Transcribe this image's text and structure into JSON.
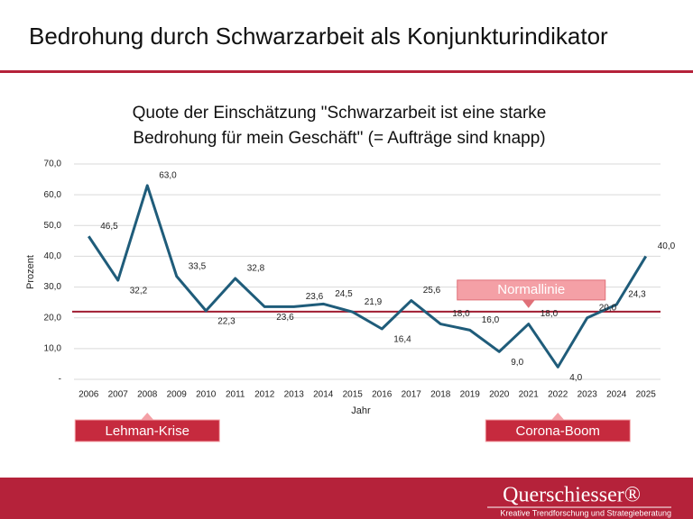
{
  "header": {
    "title": "Bedrohung durch Schwarzarbeit als Konjunkturindikator"
  },
  "chart_data": {
    "type": "line",
    "title": [
      "Quote der Einschätzung \"Schwarzarbeit ist eine starke",
      "Bedrohung für mein Geschäft\" (= Aufträge sind knapp)"
    ],
    "x_label": "Jahr",
    "y_label": "Prozent",
    "categories": [
      "2006",
      "2007",
      "2008",
      "2009",
      "2010",
      "2011",
      "2012",
      "2013",
      "2014",
      "2015",
      "2016",
      "2017",
      "2018",
      "2019",
      "2020",
      "2021",
      "2022",
      "2023",
      "2024",
      "2025"
    ],
    "values": [
      46.5,
      32.2,
      63.0,
      33.5,
      22.3,
      32.8,
      23.6,
      23.6,
      24.5,
      21.9,
      16.4,
      25.6,
      18.0,
      16.0,
      9.0,
      18.0,
      4.0,
      20.0,
      24.3,
      40.0
    ],
    "value_labels": [
      "46,5",
      "32,2",
      "63,0",
      "33,5",
      "22,3",
      "32,8",
      "23,6",
      "23,6",
      "24,5",
      "21,9",
      "16,4",
      "25,6",
      "18,0",
      "16,0",
      "9,0",
      "18,0",
      "4,0",
      "20,0",
      "24,3",
      "40,0"
    ],
    "color": "#1f5c7a",
    "ylim": [
      0,
      70
    ],
    "yticks": [
      {
        "value": 0,
        "label": "-"
      },
      {
        "value": 10,
        "label": "10,0"
      },
      {
        "value": 20,
        "label": "20,0"
      },
      {
        "value": 30,
        "label": "30,0"
      },
      {
        "value": 40,
        "label": "40,0"
      },
      {
        "value": 50,
        "label": "50,0"
      },
      {
        "value": 60,
        "label": "60,0"
      },
      {
        "value": 70,
        "label": "70,0"
      }
    ],
    "grid": true,
    "reference_line": {
      "value": 22,
      "color": "#a01c30",
      "label": "Normallinie"
    },
    "annotations": [
      {
        "text": "Lehman-Krise",
        "x": "2008"
      },
      {
        "text": "Corona-Boom",
        "x": "2022"
      }
    ]
  },
  "footer": {
    "brand": "Querschiesser®",
    "tagline": "Kreative Trendforschung und Strategieberatung"
  }
}
